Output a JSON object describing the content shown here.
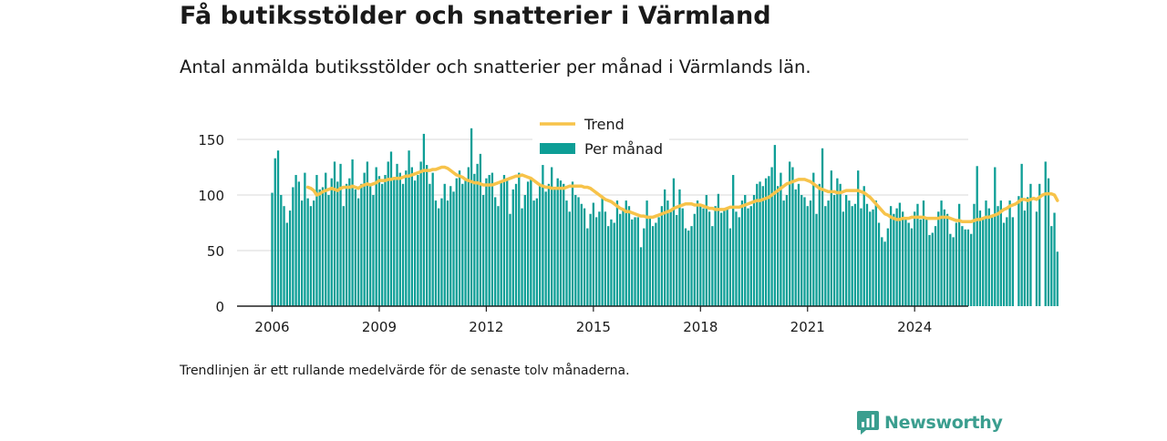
{
  "title": "Få butiksstölder och snatterier i Värmland",
  "subtitle": "Antal anmälda butiksstölder och snatterier per månad i Värmlands län.",
  "footnote": "Trendlinjen är ett rullande medelvärde för de senaste tolv månaderna.",
  "brand": "Newsworthy",
  "colors": {
    "bar": "#0d9e96",
    "trend": "#f7c34a",
    "grid": "#d9d9d9",
    "axis": "#222222"
  },
  "icons": {
    "logo": "newsworthy-chart-icon"
  },
  "chart_data": {
    "type": "bar",
    "start": "2006-01",
    "xticks": [
      "2006",
      "2009",
      "2012",
      "2015",
      "2018",
      "2021",
      "2024"
    ],
    "yticks": [
      "0",
      "50",
      "100",
      "150"
    ],
    "ylim": [
      0,
      160
    ],
    "legend": {
      "placement": "top-center",
      "trend_label": "Trend",
      "bar_label": "Per månad"
    },
    "grid": true,
    "values": [
      102,
      133,
      140,
      100,
      90,
      75,
      86,
      107,
      118,
      112,
      95,
      120,
      97,
      90,
      95,
      118,
      105,
      107,
      120,
      100,
      115,
      130,
      112,
      128,
      90,
      110,
      115,
      132,
      105,
      97,
      110,
      120,
      130,
      108,
      100,
      125,
      117,
      110,
      118,
      130,
      139,
      115,
      128,
      120,
      110,
      122,
      140,
      125,
      113,
      118,
      130,
      155,
      127,
      110,
      120,
      95,
      88,
      97,
      110,
      95,
      108,
      103,
      115,
      122,
      110,
      113,
      125,
      160,
      119,
      128,
      137,
      100,
      115,
      118,
      120,
      98,
      90,
      113,
      118,
      115,
      83,
      105,
      110,
      120,
      88,
      100,
      112,
      115,
      95,
      97,
      110,
      127,
      103,
      110,
      125,
      107,
      115,
      113,
      110,
      95,
      85,
      112,
      100,
      98,
      92,
      88,
      70,
      83,
      93,
      80,
      85,
      98,
      85,
      72,
      78,
      75,
      95,
      83,
      88,
      95,
      90,
      78,
      80,
      80,
      53,
      70,
      95,
      80,
      72,
      75,
      80,
      90,
      105,
      95,
      85,
      115,
      82,
      105,
      88,
      70,
      68,
      72,
      83,
      95,
      90,
      88,
      100,
      85,
      72,
      90,
      101,
      84,
      88,
      87,
      70,
      118,
      85,
      80,
      95,
      100,
      88,
      90,
      100,
      110,
      112,
      108,
      115,
      117,
      125,
      145,
      108,
      120,
      95,
      100,
      130,
      125,
      105,
      110,
      100,
      98,
      90,
      95,
      120,
      83,
      110,
      142,
      90,
      95,
      122,
      100,
      115,
      110,
      85,
      100,
      95,
      90,
      92,
      122,
      88,
      108,
      92,
      85,
      87,
      95,
      75,
      62,
      58,
      70,
      90,
      83,
      88,
      93,
      85,
      80,
      75,
      70,
      85,
      92,
      78,
      95,
      80,
      64,
      66,
      72,
      85,
      95,
      87,
      83,
      65,
      62,
      75,
      92,
      72,
      69,
      69,
      65,
      92,
      126,
      86,
      78,
      95,
      88,
      80,
      125,
      90,
      95,
      75,
      80,
      95,
      80,
      0,
      99,
      128,
      86,
      98,
      110,
      0,
      85,
      110,
      0,
      130,
      115,
      72,
      84,
      49
    ],
    "trend": [
      0,
      0,
      0,
      0,
      0,
      0,
      0,
      0,
      0,
      0,
      0,
      0,
      107,
      106,
      104,
      100,
      101,
      103,
      104,
      105,
      106,
      105,
      104,
      106,
      107,
      107,
      107,
      108,
      107,
      106,
      108,
      109,
      110,
      109,
      110,
      111,
      113,
      113,
      113,
      114,
      114,
      115,
      115,
      115,
      116,
      117,
      117,
      118,
      119,
      120,
      121,
      122,
      122,
      122,
      123,
      123,
      124,
      125,
      125,
      124,
      122,
      120,
      118,
      117,
      116,
      114,
      113,
      112,
      111,
      111,
      110,
      109,
      109,
      109,
      109,
      110,
      111,
      112,
      113,
      114,
      115,
      116,
      117,
      117,
      118,
      117,
      116,
      115,
      113,
      111,
      109,
      108,
      107,
      107,
      106,
      106,
      106,
      106,
      106,
      107,
      108,
      108,
      108,
      108,
      108,
      107,
      107,
      106,
      104,
      102,
      100,
      98,
      96,
      95,
      94,
      92,
      90,
      88,
      87,
      85,
      85,
      84,
      83,
      82,
      81,
      81,
      80,
      80,
      80,
      81,
      82,
      83,
      84,
      85,
      86,
      88,
      89,
      90,
      91,
      92,
      92,
      92,
      91,
      91,
      91,
      90,
      89,
      88,
      88,
      87,
      87,
      87,
      87,
      88,
      89,
      89,
      89,
      89,
      90,
      91,
      92,
      93,
      94,
      95,
      95,
      96,
      97,
      98,
      100,
      102,
      104,
      106,
      108,
      110,
      111,
      112,
      113,
      114,
      114,
      114,
      113,
      112,
      110,
      108,
      106,
      105,
      104,
      103,
      103,
      103,
      102,
      102,
      103,
      104,
      104,
      104,
      104,
      104,
      103,
      102,
      100,
      98,
      95,
      92,
      89,
      86,
      83,
      82,
      80,
      79,
      78,
      78,
      79,
      79,
      79,
      80,
      80,
      80,
      80,
      80,
      79,
      79,
      79,
      79,
      79,
      80,
      80,
      80,
      79,
      78,
      77,
      77,
      76,
      76,
      76,
      76,
      77,
      78,
      78,
      79,
      80,
      80,
      81,
      82,
      83,
      85,
      87,
      88,
      90,
      91,
      92,
      94,
      96,
      96,
      95,
      96,
      97,
      96,
      98,
      100,
      101,
      101,
      101,
      100,
      95
    ]
  }
}
